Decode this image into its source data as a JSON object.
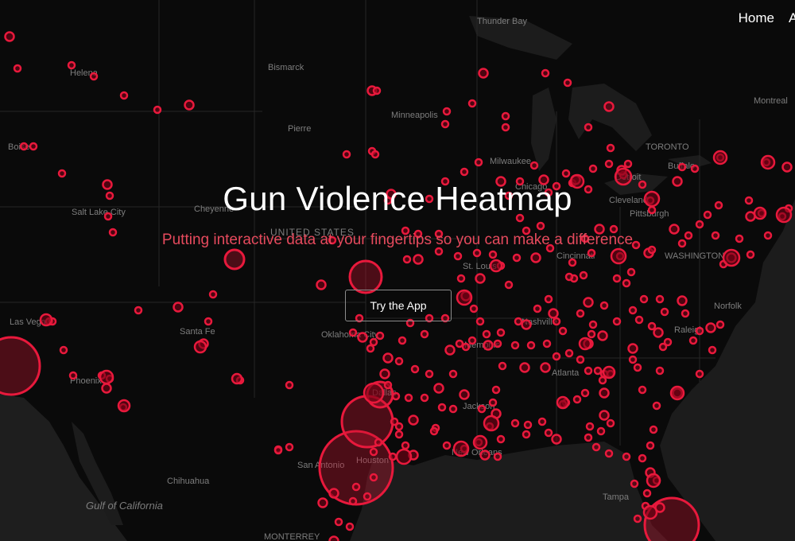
{
  "nav": {
    "home_label": "Home",
    "next_label_partial": "A"
  },
  "hero": {
    "title": "Gun Violence Heatmap",
    "subtitle": "Putting interactive data at your fingertips so you can make a difference",
    "cta_label": "Try the App"
  },
  "colors": {
    "background": "#0b0b0b",
    "marker": "#e8193c",
    "subtitle": "#e64a5d"
  },
  "map": {
    "country_label": "UNITED STATES",
    "place_labels": [
      "Thunder Bay",
      "Helena",
      "Bismarck",
      "Montreal",
      "Minneapolis",
      "Pierre",
      "Boise",
      "TORONTO",
      "Milwaukee",
      "Buffalo",
      "Detroit",
      "Salt Lake City",
      "Cheyenne",
      "Chicago",
      "Cleveland",
      "Pittsburgh",
      "WASHINGTON",
      "St. Louis",
      "Cincinnati",
      "Nashville",
      "Norfolk",
      "Las Vegas",
      "Santa Fe",
      "Oklahoma City",
      "Memphis",
      "Raleigh",
      "Phoenix",
      "Atlanta",
      "Dallas",
      "Jackson",
      "San Antonio",
      "Houston",
      "New Orleans",
      "Chihuahua",
      "Gulf of California",
      "Tampa",
      "MONTERREY"
    ]
  }
}
